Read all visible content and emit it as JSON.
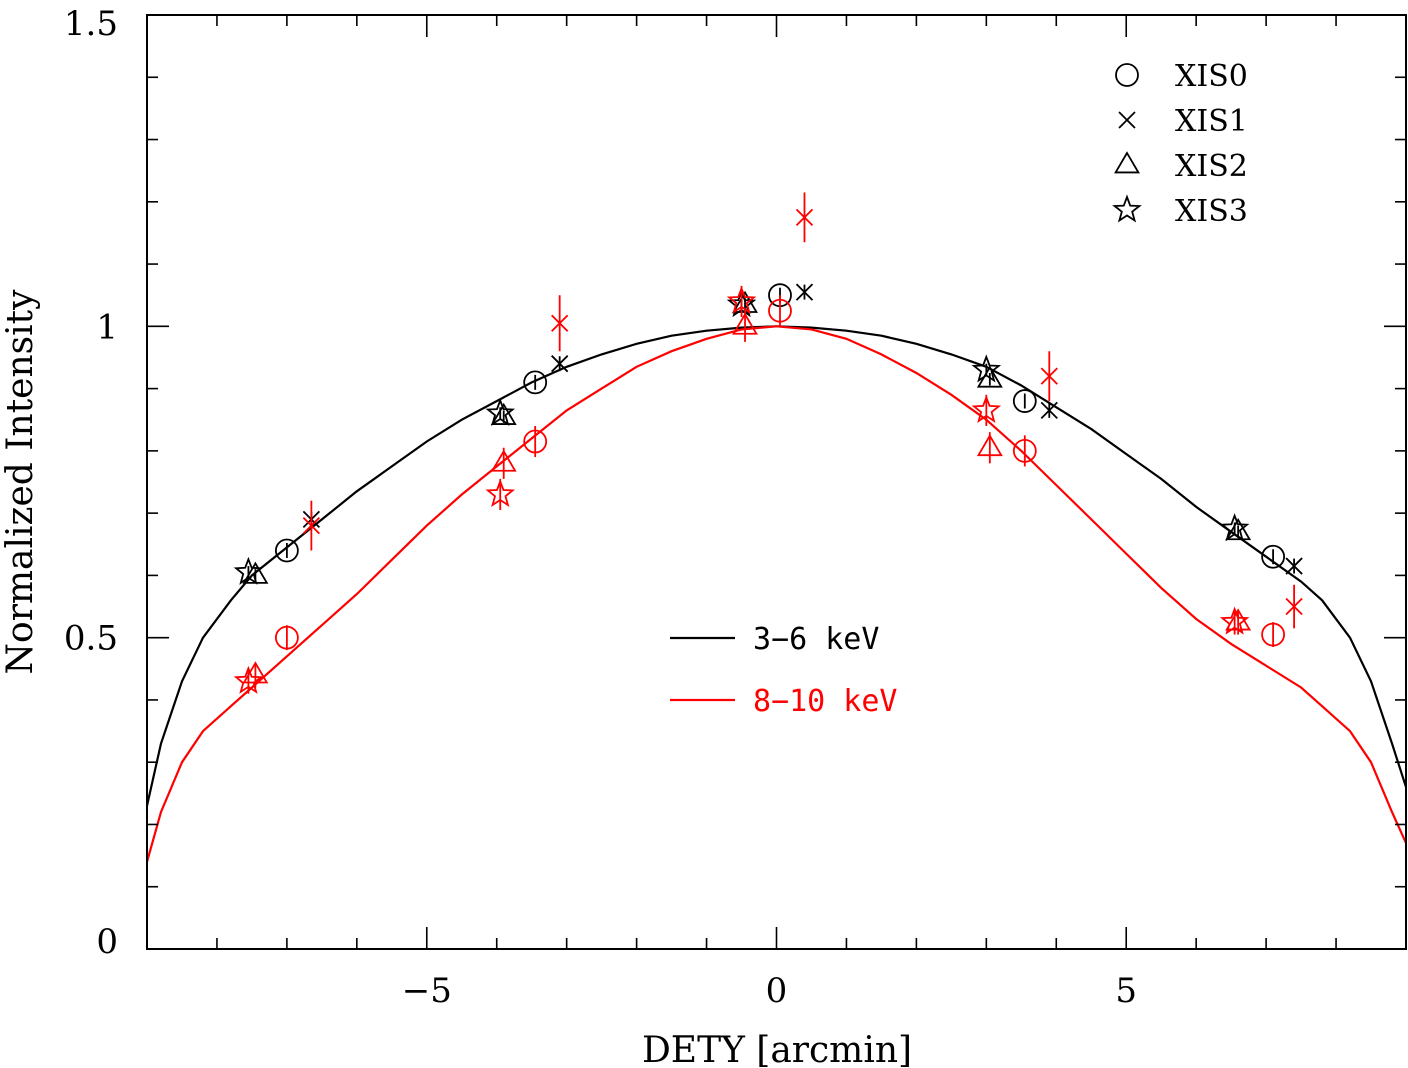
{
  "chart_data": {
    "type": "scatter",
    "xlabel": "DETY [arcmin]",
    "ylabel": "Normalized Intensity",
    "xlim": [
      -9,
      9
    ],
    "ylim": [
      0,
      1.5
    ],
    "x_ticks": [
      -5,
      0,
      5
    ],
    "y_ticks": [
      0,
      0.5,
      1,
      1.5
    ],
    "y_tick_labels": [
      "0",
      "0.5",
      "1",
      "1.5"
    ],
    "x_tick_labels": [
      "−5",
      "0",
      "5"
    ],
    "grid": false,
    "colors": {
      "band_3_6": "#000000",
      "band_8_10": "#ff0000"
    },
    "instrument_legend": {
      "placement": "top-right",
      "items": [
        {
          "label": "XIS0",
          "marker": "circle"
        },
        {
          "label": "XIS1",
          "marker": "cross"
        },
        {
          "label": "XIS2",
          "marker": "triangle"
        },
        {
          "label": "XIS3",
          "marker": "star"
        }
      ]
    },
    "band_legend": {
      "placement": "center",
      "items": [
        {
          "label": "3−6 keV",
          "color": "#000000"
        },
        {
          "label": "8−10 keV",
          "color": "#ff0000"
        }
      ]
    },
    "curves": [
      {
        "label": "3−6 keV",
        "color": "#000000",
        "x": [
          -9,
          -8.8,
          -8.5,
          -8.2,
          -7.8,
          -7.5,
          -7.0,
          -6.5,
          -6.0,
          -5.5,
          -5.0,
          -4.5,
          -4.0,
          -3.5,
          -3.0,
          -2.5,
          -2.0,
          -1.5,
          -1.0,
          -0.5,
          0,
          0.5,
          1.0,
          1.5,
          2.0,
          2.5,
          3.0,
          3.5,
          4.0,
          4.5,
          5.0,
          5.5,
          6.0,
          6.5,
          7.0,
          7.5,
          7.8,
          8.2,
          8.5,
          8.8,
          9
        ],
        "y": [
          0.23,
          0.33,
          0.43,
          0.5,
          0.56,
          0.6,
          0.645,
          0.69,
          0.735,
          0.775,
          0.815,
          0.85,
          0.88,
          0.91,
          0.935,
          0.955,
          0.972,
          0.985,
          0.993,
          0.998,
          1.0,
          0.998,
          0.993,
          0.985,
          0.972,
          0.955,
          0.935,
          0.905,
          0.87,
          0.835,
          0.795,
          0.755,
          0.71,
          0.67,
          0.63,
          0.59,
          0.56,
          0.5,
          0.43,
          0.33,
          0.26
        ]
      },
      {
        "label": "8−10 keV",
        "color": "#ff0000",
        "x": [
          -9,
          -8.8,
          -8.5,
          -8.2,
          -7.8,
          -7.5,
          -7.0,
          -6.5,
          -6.0,
          -5.5,
          -5.0,
          -4.5,
          -4.0,
          -3.5,
          -3.0,
          -2.5,
          -2.0,
          -1.5,
          -1.0,
          -0.5,
          0,
          0.5,
          1.0,
          1.5,
          2.0,
          2.5,
          3.0,
          3.5,
          4.0,
          4.5,
          5.0,
          5.5,
          6.0,
          6.5,
          7.0,
          7.5,
          7.8,
          8.2,
          8.5,
          8.8,
          9
        ],
        "y": [
          0.14,
          0.22,
          0.3,
          0.35,
          0.39,
          0.42,
          0.47,
          0.52,
          0.57,
          0.625,
          0.68,
          0.73,
          0.775,
          0.82,
          0.865,
          0.9,
          0.935,
          0.96,
          0.98,
          0.995,
          1.0,
          0.995,
          0.98,
          0.955,
          0.925,
          0.89,
          0.85,
          0.8,
          0.745,
          0.69,
          0.635,
          0.58,
          0.53,
          0.49,
          0.455,
          0.42,
          0.39,
          0.35,
          0.3,
          0.22,
          0.17
        ]
      }
    ],
    "series": [
      {
        "instrument": "XIS0",
        "band": "3−6 keV",
        "marker": "circle",
        "color": "#000000",
        "points": [
          {
            "x": -7.0,
            "y": 0.64,
            "yerr": 0.012
          },
          {
            "x": -3.45,
            "y": 0.91,
            "yerr": 0.012
          },
          {
            "x": 0.05,
            "y": 1.05,
            "yerr": 0.012
          },
          {
            "x": 3.55,
            "y": 0.88,
            "yerr": 0.012
          },
          {
            "x": 7.1,
            "y": 0.63,
            "yerr": 0.012
          }
        ]
      },
      {
        "instrument": "XIS1",
        "band": "3−6 keV",
        "marker": "cross",
        "color": "#000000",
        "points": [
          {
            "x": -6.65,
            "y": 0.69,
            "yerr": 0.012
          },
          {
            "x": -3.1,
            "y": 0.94,
            "yerr": 0.012
          },
          {
            "x": 0.4,
            "y": 1.055,
            "yerr": 0.012
          },
          {
            "x": 3.9,
            "y": 0.865,
            "yerr": 0.012
          },
          {
            "x": 7.4,
            "y": 0.615,
            "yerr": 0.012
          }
        ]
      },
      {
        "instrument": "XIS2",
        "band": "3−6 keV",
        "marker": "triangle",
        "color": "#000000",
        "points": [
          {
            "x": -7.45,
            "y": 0.6,
            "yerr": 0.01
          },
          {
            "x": -3.9,
            "y": 0.855,
            "yerr": 0.01
          },
          {
            "x": -0.45,
            "y": 1.035,
            "yerr": 0.01
          },
          {
            "x": 3.05,
            "y": 0.915,
            "yerr": 0.01
          },
          {
            "x": 6.6,
            "y": 0.67,
            "yerr": 0.01
          }
        ]
      },
      {
        "instrument": "XIS3",
        "band": "3−6 keV",
        "marker": "star",
        "color": "#000000",
        "points": [
          {
            "x": -7.55,
            "y": 0.605,
            "yerr": 0.01
          },
          {
            "x": -3.95,
            "y": 0.86,
            "yerr": 0.01
          },
          {
            "x": -0.5,
            "y": 1.035,
            "yerr": 0.01
          },
          {
            "x": 3.0,
            "y": 0.93,
            "yerr": 0.01
          },
          {
            "x": 6.55,
            "y": 0.675,
            "yerr": 0.01
          }
        ]
      },
      {
        "instrument": "XIS0",
        "band": "8−10 keV",
        "marker": "circle",
        "color": "#ff0000",
        "points": [
          {
            "x": -7.0,
            "y": 0.5,
            "yerr": 0.02
          },
          {
            "x": -3.45,
            "y": 0.815,
            "yerr": 0.025
          },
          {
            "x": 0.05,
            "y": 1.025,
            "yerr": 0.025
          },
          {
            "x": 3.55,
            "y": 0.8,
            "yerr": 0.025
          },
          {
            "x": 7.1,
            "y": 0.505,
            "yerr": 0.02
          }
        ]
      },
      {
        "instrument": "XIS1",
        "band": "8−10 keV",
        "marker": "cross",
        "color": "#ff0000",
        "points": [
          {
            "x": -6.65,
            "y": 0.68,
            "yerr": 0.04
          },
          {
            "x": -3.1,
            "y": 1.005,
            "yerr": 0.045
          },
          {
            "x": 0.4,
            "y": 1.175,
            "yerr": 0.04
          },
          {
            "x": 3.9,
            "y": 0.92,
            "yerr": 0.04
          },
          {
            "x": 7.4,
            "y": 0.55,
            "yerr": 0.035
          }
        ]
      },
      {
        "instrument": "XIS2",
        "band": "8−10 keV",
        "marker": "triangle",
        "color": "#ff0000",
        "points": [
          {
            "x": -7.45,
            "y": 0.44,
            "yerr": 0.02
          },
          {
            "x": -3.9,
            "y": 0.78,
            "yerr": 0.025
          },
          {
            "x": -0.45,
            "y": 1.0,
            "yerr": 0.025
          },
          {
            "x": 3.05,
            "y": 0.805,
            "yerr": 0.025
          },
          {
            "x": 6.6,
            "y": 0.525,
            "yerr": 0.02
          }
        ]
      },
      {
        "instrument": "XIS3",
        "band": "8−10 keV",
        "marker": "star",
        "color": "#ff0000",
        "points": [
          {
            "x": -7.55,
            "y": 0.43,
            "yerr": 0.02
          },
          {
            "x": -3.95,
            "y": 0.73,
            "yerr": 0.025
          },
          {
            "x": -0.5,
            "y": 1.04,
            "yerr": 0.025
          },
          {
            "x": 3.0,
            "y": 0.865,
            "yerr": 0.025
          },
          {
            "x": 6.55,
            "y": 0.525,
            "yerr": 0.02
          }
        ]
      }
    ]
  }
}
